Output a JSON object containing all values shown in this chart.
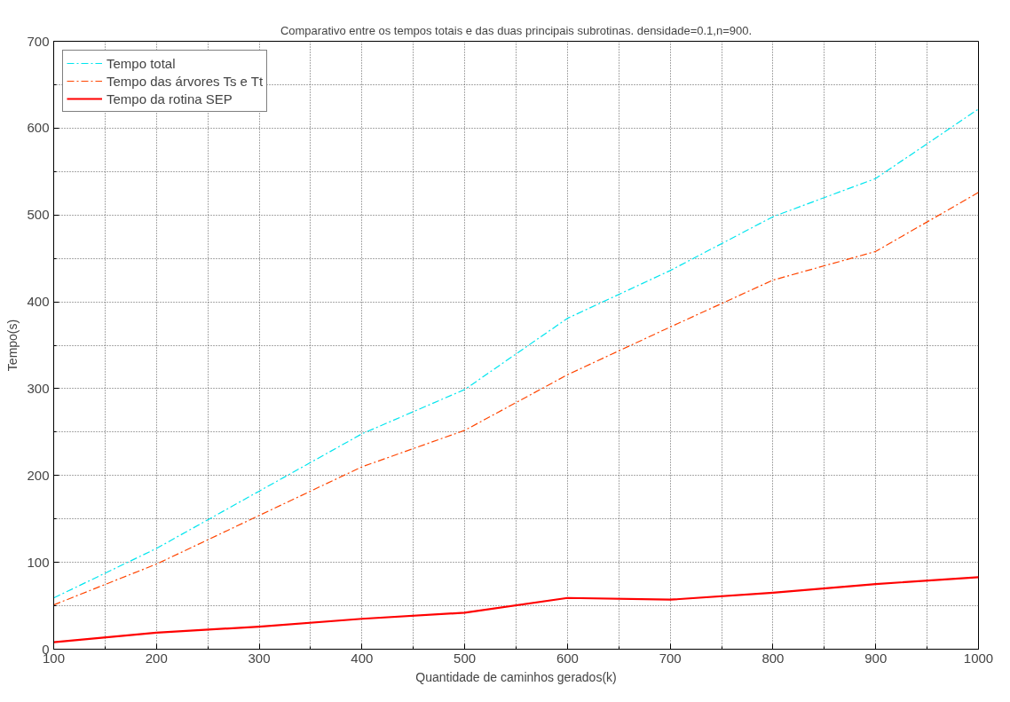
{
  "chart_data": {
    "type": "line",
    "title": "Comparativo entre os tempos totais e das duas principais subrotinas. densidade=0.1,n=900.",
    "xlabel": "Quantidade de caminhos gerados(k)",
    "ylabel": "Tempo(s)",
    "x": [
      100,
      200,
      300,
      400,
      500,
      600,
      700,
      800,
      900,
      1000
    ],
    "series": [
      {
        "name": "Tempo total",
        "color": "#00e5ee",
        "line_style": "dashed",
        "values": [
          59,
          116,
          182,
          248,
          299,
          381,
          436,
          498,
          542,
          622
        ]
      },
      {
        "name": "Tempo das árvores Ts e Tt",
        "color": "#ff4500",
        "line_style": "dashed",
        "values": [
          51,
          98,
          154,
          210,
          252,
          316,
          371,
          425,
          458,
          526
        ]
      },
      {
        "name": "Tempo da rotina SEP",
        "color": "#ff0000",
        "line_style": "solid",
        "values": [
          8,
          19,
          26,
          35,
          42,
          59,
          57,
          65,
          75,
          83
        ]
      }
    ],
    "xlim": [
      100,
      1000
    ],
    "ylim": [
      0,
      700
    ],
    "xticks": [
      100,
      200,
      300,
      400,
      500,
      600,
      700,
      800,
      900,
      1000
    ],
    "yticks": [
      0,
      100,
      200,
      300,
      400,
      500,
      600,
      700
    ],
    "grid": true,
    "legend": "top left"
  }
}
